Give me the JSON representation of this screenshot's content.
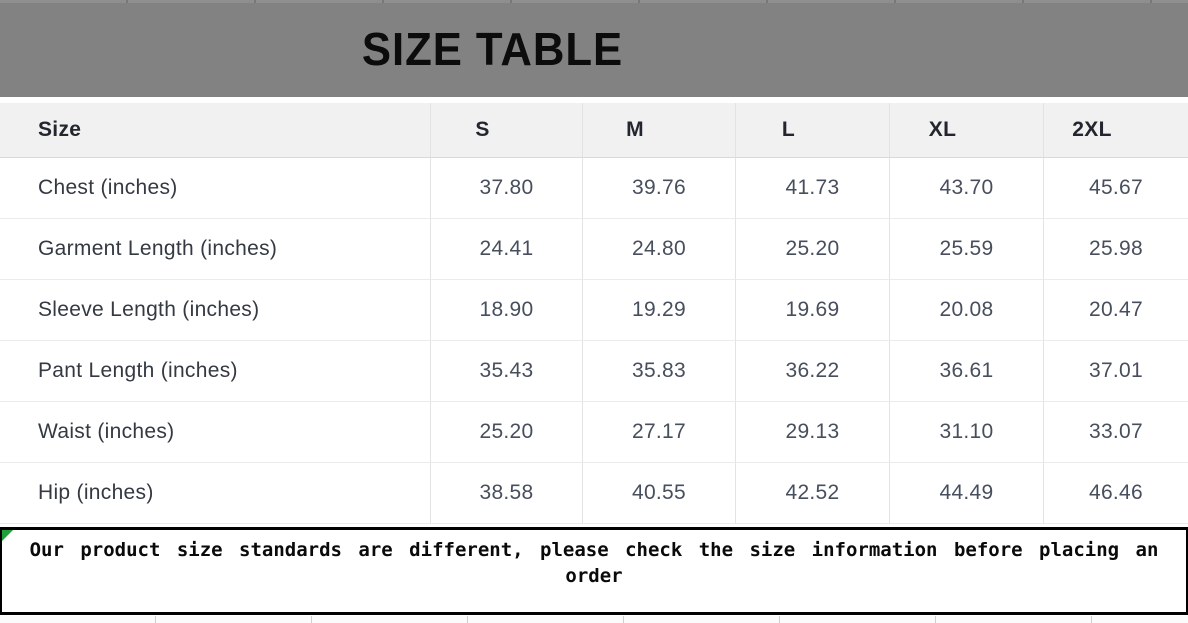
{
  "title": "SIZE TABLE",
  "note": "Our product size standards are different, please check the size information before placing an order",
  "chart_data": {
    "type": "table",
    "title": "SIZE TABLE",
    "columns": [
      "Size",
      "S",
      "M",
      "L",
      "XL",
      "2XL"
    ],
    "rows": [
      {
        "label": "Chest (inches)",
        "values": [
          "37.80",
          "39.76",
          "41.73",
          "43.70",
          "45.67"
        ]
      },
      {
        "label": "Garment Length (inches)",
        "values": [
          "24.41",
          "24.80",
          "25.20",
          "25.59",
          "25.98"
        ]
      },
      {
        "label": "Sleeve Length (inches)",
        "values": [
          "18.90",
          "19.29",
          "19.69",
          "20.08",
          "20.47"
        ]
      },
      {
        "label": "Pant Length (inches)",
        "values": [
          "35.43",
          "35.83",
          "36.22",
          "36.61",
          "37.01"
        ]
      },
      {
        "label": "Waist (inches)",
        "values": [
          "25.20",
          "27.17",
          "29.13",
          "31.10",
          "33.07"
        ]
      },
      {
        "label": "Hip (inches)",
        "values": [
          "38.58",
          "40.55",
          "42.52",
          "44.49",
          "46.46"
        ]
      }
    ],
    "footnote": "Our product size standards are different, please check the size information before placing an order"
  },
  "colors": {
    "title_band_gray": "#828282",
    "table_header_bg": "#f1f1f1",
    "note_border_black": "#000000",
    "corner_flag_green": "#21a038"
  }
}
